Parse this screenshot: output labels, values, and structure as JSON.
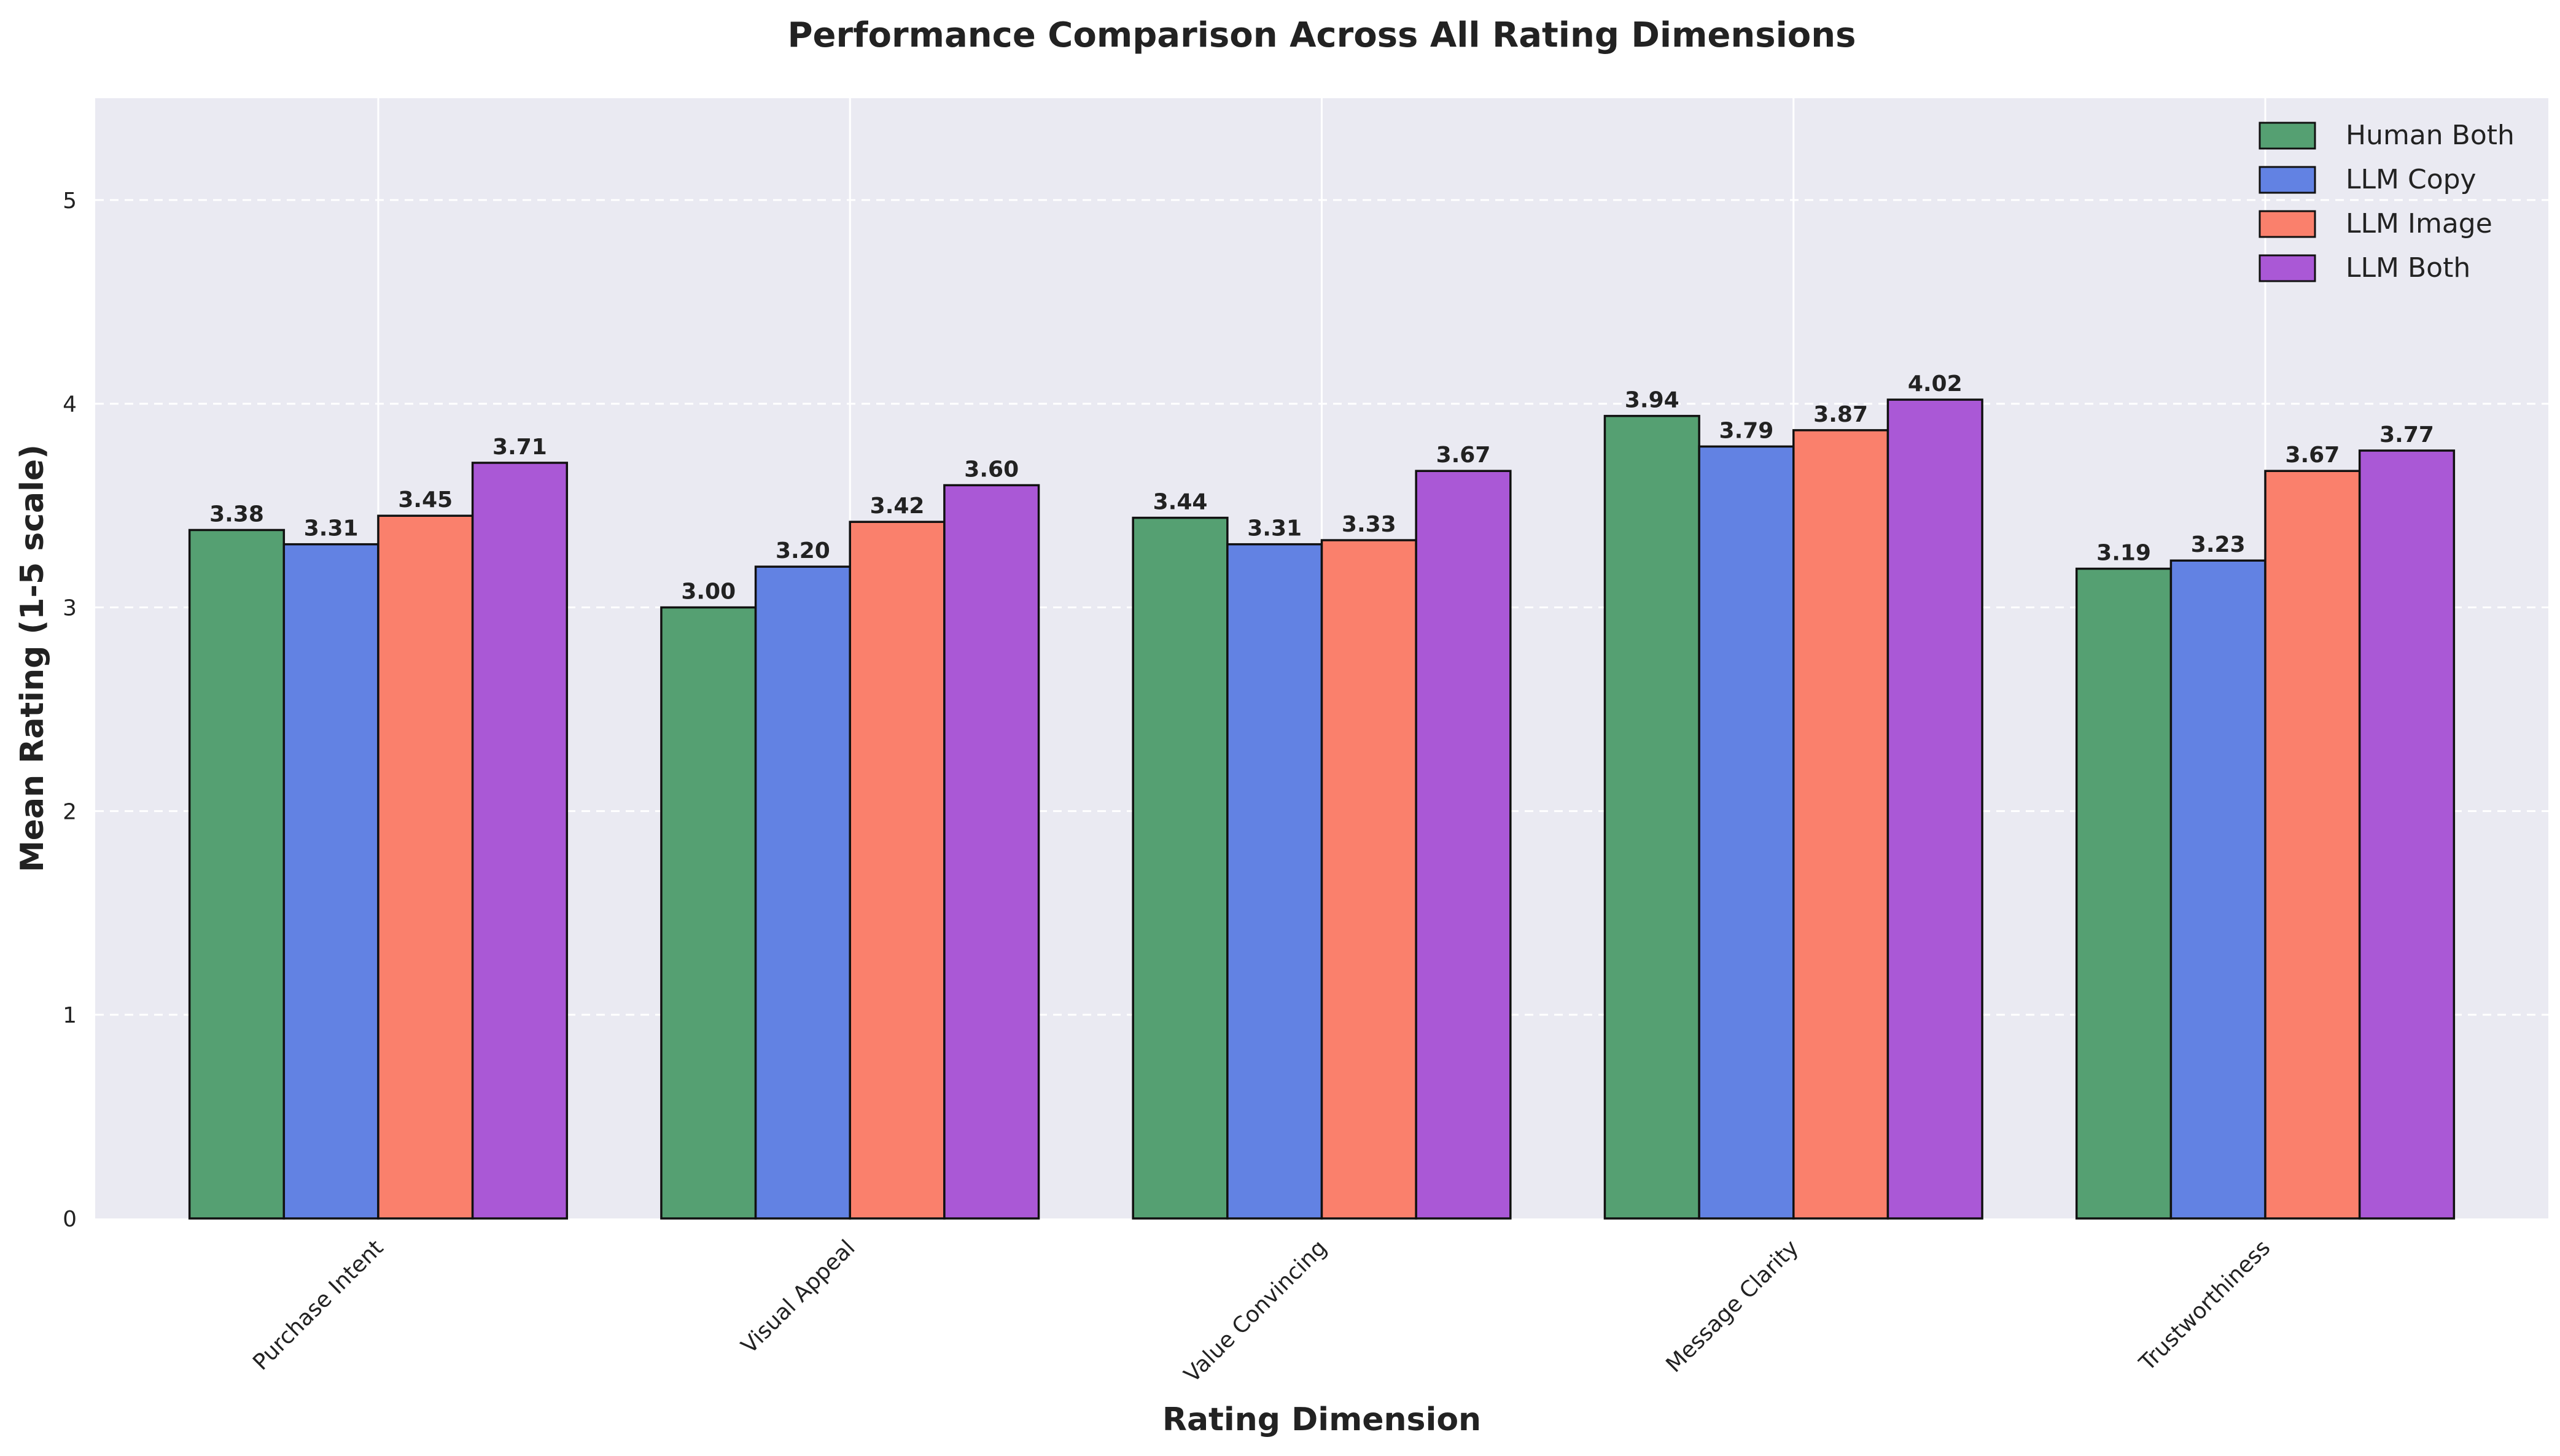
{
  "chart_data": {
    "type": "bar",
    "title": "Performance Comparison Across All Rating Dimensions",
    "xlabel": "Rating Dimension",
    "ylabel": "Mean Rating (1-5 scale)",
    "ylim": [
      0,
      5.5
    ],
    "yticks": [
      0,
      1,
      2,
      3,
      4,
      5
    ],
    "grid": true,
    "legend_position": "top-right",
    "categories": [
      "Purchase Intent",
      "Visual Appeal",
      "Value Convincing",
      "Message Clarity",
      "Trustworthiness"
    ],
    "series": [
      {
        "name": "Human Both",
        "color": "#55a072",
        "values": [
          3.38,
          3.0,
          3.44,
          3.94,
          3.19
        ]
      },
      {
        "name": "LLM Copy",
        "color": "#6282e3",
        "values": [
          3.31,
          3.2,
          3.31,
          3.79,
          3.23
        ]
      },
      {
        "name": "LLM Image",
        "color": "#fa806c",
        "values": [
          3.45,
          3.42,
          3.33,
          3.87,
          3.67
        ]
      },
      {
        "name": "LLM Both",
        "color": "#aa58d6",
        "values": [
          3.71,
          3.6,
          3.67,
          4.02,
          3.77
        ]
      }
    ],
    "value_labels": [
      [
        "3.38",
        "3.00",
        "3.44",
        "3.94",
        "3.19"
      ],
      [
        "3.31",
        "3.20",
        "3.31",
        "3.79",
        "3.23"
      ],
      [
        "3.45",
        "3.42",
        "3.33",
        "3.87",
        "3.67"
      ],
      [
        "3.71",
        "3.60",
        "3.67",
        "4.02",
        "3.77"
      ]
    ]
  }
}
